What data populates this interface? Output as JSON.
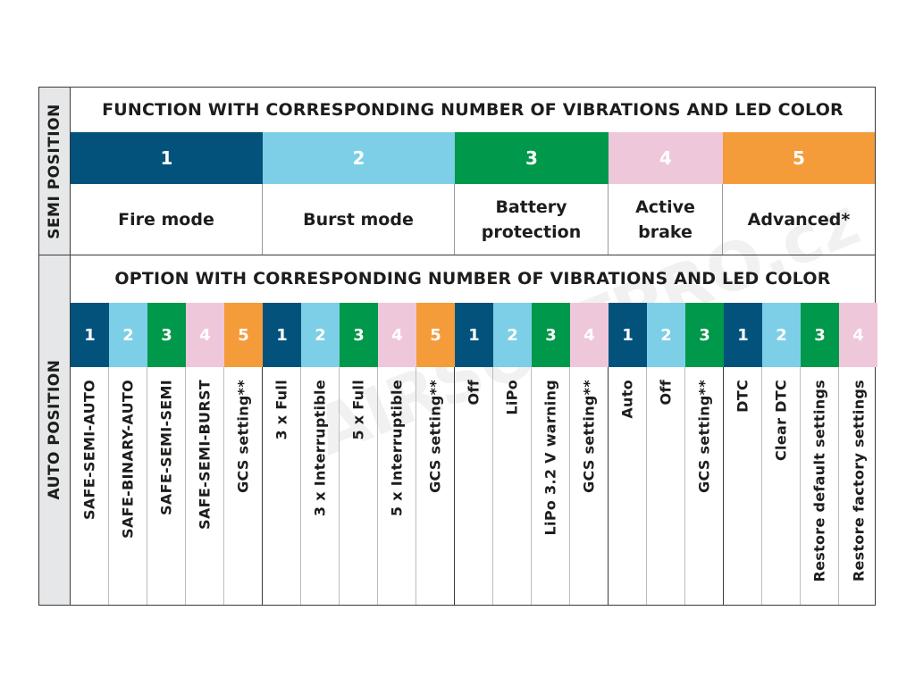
{
  "colors": {
    "c1": "#03527c",
    "c2": "#7ccfe6",
    "c3": "#00984a",
    "c4": "#efc7da",
    "c5": "#f59c3a"
  },
  "side": {
    "semi": "SEMI POSITION",
    "auto": "AUTO POSITION"
  },
  "function_header": "FUNCTION WITH CORRESPONDING NUMBER OF VIBRATIONS AND LED COLOR",
  "option_header": "OPTION WITH CORRESPONDING NUMBER OF VIBRATIONS AND LED COLOR",
  "watermark": "AIRSOFTPRO.cz",
  "functions": [
    {
      "num": "1",
      "color": "c1",
      "label": "Fire mode"
    },
    {
      "num": "2",
      "color": "c2",
      "label": "Burst mode"
    },
    {
      "num": "3",
      "color": "c3",
      "label": "Battery protection"
    },
    {
      "num": "4",
      "color": "c4",
      "label": "Active brake"
    },
    {
      "num": "5",
      "color": "c5",
      "label": "Advanced*"
    }
  ],
  "options": [
    [
      {
        "num": "1",
        "color": "c1",
        "label": "SAFE-SEMI-AUTO"
      },
      {
        "num": "2",
        "color": "c2",
        "label": "SAFE-BINARY-AUTO"
      },
      {
        "num": "3",
        "color": "c3",
        "label": "SAFE-SEMI-SEMI"
      },
      {
        "num": "4",
        "color": "c4",
        "label": "SAFE-SEMI-BURST"
      },
      {
        "num": "5",
        "color": "c5",
        "label": "GCS setting**"
      }
    ],
    [
      {
        "num": "1",
        "color": "c1",
        "label": "3 x Full"
      },
      {
        "num": "2",
        "color": "c2",
        "label": "3 x Interruptible"
      },
      {
        "num": "3",
        "color": "c3",
        "label": "5 x Full"
      },
      {
        "num": "4",
        "color": "c4",
        "label": "5 x Interruptible"
      },
      {
        "num": "5",
        "color": "c5",
        "label": "GCS setting**"
      }
    ],
    [
      {
        "num": "1",
        "color": "c1",
        "label": "Off"
      },
      {
        "num": "2",
        "color": "c2",
        "label": "LiPo"
      },
      {
        "num": "3",
        "color": "c3",
        "label": "LiPo 3.2 V warning"
      },
      {
        "num": "4",
        "color": "c4",
        "label": "GCS setting**"
      }
    ],
    [
      {
        "num": "1",
        "color": "c1",
        "label": "Auto"
      },
      {
        "num": "2",
        "color": "c2",
        "label": "Off"
      },
      {
        "num": "3",
        "color": "c3",
        "label": "GCS setting**"
      }
    ],
    [
      {
        "num": "1",
        "color": "c1",
        "label": "DTC"
      },
      {
        "num": "2",
        "color": "c2",
        "label": "Clear DTC"
      },
      {
        "num": "3",
        "color": "c3",
        "label": "Restore default settings"
      },
      {
        "num": "4",
        "color": "c4",
        "label": "Restore factory settings"
      }
    ]
  ]
}
